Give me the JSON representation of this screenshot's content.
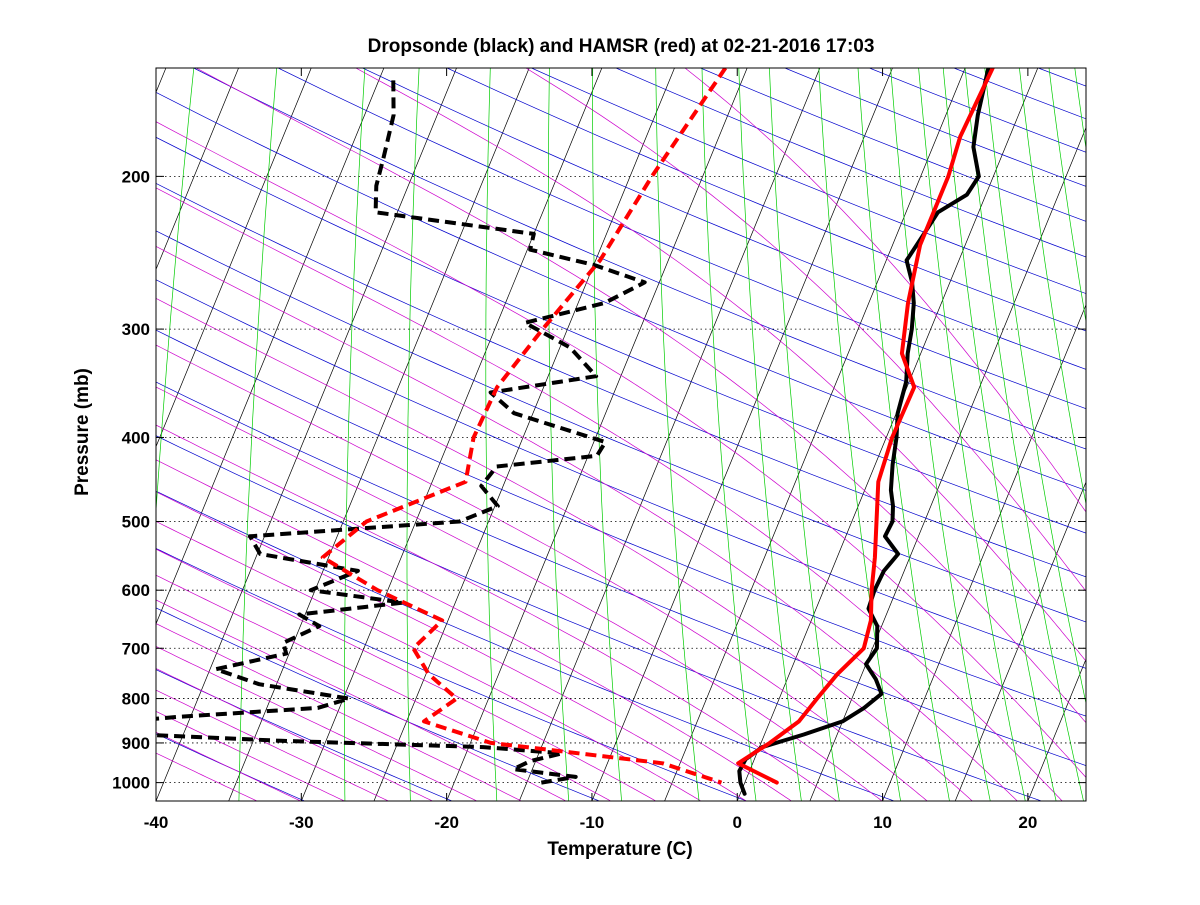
{
  "chart_data": {
    "type": "line",
    "subtype": "skew-T log-P diagram",
    "title": "Dropsonde (black) and HAMSR (red) at 02-21-2016 17:03",
    "xlabel": "Temperature (C)",
    "ylabel": "Pressure (mb)",
    "xlim": [
      -40,
      24
    ],
    "ylim_pressure": [
      1050,
      150
    ],
    "y_scale": "log (pressure decreasing upward)",
    "x_ticks": [
      -40,
      -30,
      -20,
      -10,
      0,
      10,
      20
    ],
    "y_ticks": [
      200,
      300,
      400,
      500,
      600,
      700,
      800,
      900,
      1000
    ],
    "grid": "dotted horizontal isobars at labeled ticks",
    "background_lines": [
      {
        "name": "skewed isotherms",
        "color": "#000000"
      },
      {
        "name": "dry adiabats",
        "color": "#0000cc"
      },
      {
        "name": "moist adiabats",
        "color": "#cc00cc"
      },
      {
        "name": "mixing ratio lines",
        "color": "#00cc00"
      }
    ],
    "series": [
      {
        "color": "#000000",
        "style": "solid",
        "points": [
          [
            150,
            -3.4
          ],
          [
            170,
            -2.8
          ],
          [
            185,
            -2.2
          ],
          [
            200,
            -1.0
          ],
          [
            210,
            -1.3
          ],
          [
            220,
            -2.8
          ],
          [
            235,
            -3.2
          ],
          [
            250,
            -3.6
          ],
          [
            265,
            -2.6
          ],
          [
            280,
            -1.9
          ],
          [
            300,
            -1.3
          ],
          [
            320,
            -0.9
          ],
          [
            345,
            -0.2
          ],
          [
            375,
            0.1
          ],
          [
            400,
            0.7
          ],
          [
            430,
            1.2
          ],
          [
            460,
            1.8
          ],
          [
            480,
            2.4
          ],
          [
            500,
            2.8
          ],
          [
            520,
            2.7
          ],
          [
            545,
            4.1
          ],
          [
            570,
            3.6
          ],
          [
            600,
            3.5
          ],
          [
            630,
            3.6
          ],
          [
            660,
            4.7
          ],
          [
            700,
            5.3
          ],
          [
            730,
            5.0
          ],
          [
            760,
            6.1
          ],
          [
            790,
            6.9
          ],
          [
            820,
            6.1
          ],
          [
            850,
            5.0
          ],
          [
            880,
            2.7
          ],
          [
            910,
            0.2
          ],
          [
            940,
            -0.6
          ],
          [
            970,
            -0.7
          ],
          [
            1000,
            -0.3
          ],
          [
            1030,
            0.3
          ]
        ]
      },
      {
        "color": "#000000",
        "style": "dashed",
        "points": [
          [
            155,
            -44.0
          ],
          [
            170,
            -43.0
          ],
          [
            190,
            -42.5
          ],
          [
            205,
            -42.2
          ],
          [
            220,
            -41.5
          ],
          [
            233,
            -30.0
          ],
          [
            243,
            -29.8
          ],
          [
            253,
            -25.0
          ],
          [
            265,
            -21.0
          ],
          [
            280,
            -23.2
          ],
          [
            295,
            -28.1
          ],
          [
            315,
            -24.3
          ],
          [
            340,
            -21.7
          ],
          [
            355,
            -28.5
          ],
          [
            375,
            -26.3
          ],
          [
            405,
            -19.2
          ],
          [
            420,
            -19.4
          ],
          [
            432,
            -26.0
          ],
          [
            455,
            -26.5
          ],
          [
            480,
            -24.8
          ],
          [
            500,
            -27.0
          ],
          [
            520,
            -41.0
          ],
          [
            545,
            -39.8
          ],
          [
            570,
            -32.6
          ],
          [
            600,
            -35.3
          ],
          [
            620,
            -28.6
          ],
          [
            640,
            -35.4
          ],
          [
            660,
            -33.7
          ],
          [
            690,
            -35.7
          ],
          [
            710,
            -35.2
          ],
          [
            740,
            -39.6
          ],
          [
            770,
            -36.2
          ],
          [
            800,
            -29.6
          ],
          [
            820,
            -31.5
          ],
          [
            840,
            -40.9
          ],
          [
            860,
            -47.8
          ],
          [
            880,
            -42.9
          ],
          [
            895,
            -33.1
          ],
          [
            910,
            -19.0
          ],
          [
            925,
            -13.4
          ],
          [
            945,
            -15.4
          ],
          [
            965,
            -16.3
          ],
          [
            985,
            -11.8
          ],
          [
            1000,
            -14.0
          ]
        ]
      },
      {
        "color": "#ff0000",
        "style": "solid",
        "points": [
          [
            150,
            -3.1
          ],
          [
            180,
            -3.4
          ],
          [
            200,
            -3.1
          ],
          [
            240,
            -3.1
          ],
          [
            280,
            -2.3
          ],
          [
            320,
            -1.3
          ],
          [
            350,
            0.5
          ],
          [
            400,
            0.4
          ],
          [
            450,
            0.7
          ],
          [
            500,
            1.7
          ],
          [
            550,
            2.6
          ],
          [
            600,
            3.3
          ],
          [
            650,
            4.1
          ],
          [
            700,
            4.4
          ],
          [
            750,
            3.3
          ],
          [
            800,
            2.6
          ],
          [
            850,
            2.0
          ],
          [
            900,
            0.6
          ],
          [
            950,
            -1.0
          ],
          [
            1000,
            2.2
          ]
        ]
      },
      {
        "color": "#ff0000",
        "style": "dashed",
        "points": [
          [
            150,
            -21.5
          ],
          [
            200,
            -23.5
          ],
          [
            250,
            -24.7
          ],
          [
            300,
            -26.7
          ],
          [
            350,
            -28.2
          ],
          [
            400,
            -28.4
          ],
          [
            450,
            -27.7
          ],
          [
            500,
            -33.4
          ],
          [
            550,
            -35.4
          ],
          [
            600,
            -30.7
          ],
          [
            650,
            -25.4
          ],
          [
            700,
            -26.6
          ],
          [
            750,
            -24.8
          ],
          [
            800,
            -22.2
          ],
          [
            850,
            -23.8
          ],
          [
            900,
            -18.6
          ],
          [
            950,
            -6.2
          ],
          [
            1000,
            -1.6
          ]
        ]
      }
    ]
  }
}
